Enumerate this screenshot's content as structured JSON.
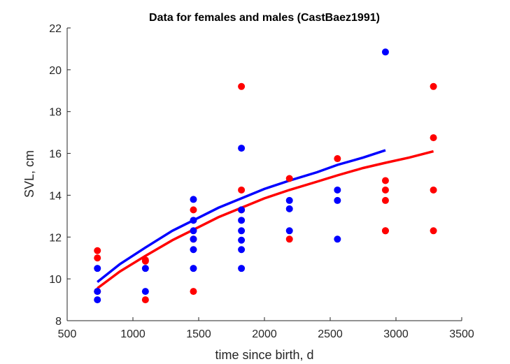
{
  "chart_data": {
    "type": "scatter",
    "title": "Data for females and males (CastBaez1991)",
    "xlabel": "time since birth, d",
    "ylabel": "SVL, cm",
    "xlim": [
      500,
      3500
    ],
    "ylim": [
      8,
      22
    ],
    "xticks": [
      500,
      1000,
      1500,
      2000,
      2500,
      3000,
      3500
    ],
    "yticks": [
      8,
      10,
      12,
      14,
      16,
      18,
      20,
      22
    ],
    "xtick_labels": [
      "500",
      "1000",
      "1500",
      "2000",
      "2500",
      "3000",
      "3500"
    ],
    "ytick_labels": [
      "8",
      "10",
      "12",
      "14",
      "16",
      "18",
      "20",
      "22"
    ],
    "grid": false,
    "legend": "none",
    "series": [
      {
        "color": "#ff0000",
        "kind": "points",
        "x": [
          730,
          730,
          730,
          1095,
          1095,
          1095,
          1460,
          1460,
          1460,
          1825,
          1825,
          1825,
          2190,
          2190,
          2555,
          2920,
          2920,
          2920,
          2920,
          2920,
          3285,
          3285,
          3285,
          3285
        ],
        "y": [
          11.35,
          11.0,
          9.4,
          10.9,
          10.85,
          9.0,
          13.3,
          11.9,
          9.4,
          19.2,
          14.25,
          13.3,
          14.8,
          11.9,
          15.75,
          14.7,
          14.25,
          13.75,
          12.3,
          12.3,
          19.2,
          16.75,
          14.25,
          12.3
        ]
      },
      {
        "color": "#0000ff",
        "kind": "points",
        "x": [
          730,
          730,
          730,
          1095,
          1095,
          1460,
          1460,
          1460,
          1460,
          1460,
          1460,
          1825,
          1825,
          1825,
          1825,
          1825,
          1825,
          1825,
          2190,
          2190,
          2190,
          2555,
          2555,
          2555,
          2920
        ],
        "y": [
          10.5,
          9.4,
          9.0,
          10.5,
          9.4,
          13.8,
          12.8,
          12.3,
          11.9,
          11.4,
          10.5,
          16.25,
          12.8,
          12.3,
          11.85,
          11.4,
          10.5,
          13.3,
          13.75,
          13.35,
          12.3,
          14.25,
          13.75,
          11.9,
          20.85
        ]
      },
      {
        "color": "#ff0000",
        "kind": "curve",
        "x": [
          730,
          900,
          1095,
          1300,
          1460,
          1650,
          1825,
          2000,
          2190,
          2400,
          2555,
          2750,
          2920,
          3100,
          3285
        ],
        "y": [
          9.55,
          10.35,
          11.1,
          11.85,
          12.35,
          12.95,
          13.4,
          13.85,
          14.25,
          14.65,
          14.95,
          15.3,
          15.55,
          15.8,
          16.1
        ]
      },
      {
        "color": "#0000ff",
        "kind": "curve",
        "x": [
          730,
          900,
          1095,
          1300,
          1460,
          1650,
          1825,
          2000,
          2190,
          2400,
          2555,
          2750,
          2920
        ],
        "y": [
          9.85,
          10.7,
          11.5,
          12.3,
          12.8,
          13.4,
          13.85,
          14.3,
          14.7,
          15.1,
          15.45,
          15.8,
          16.15
        ]
      }
    ]
  }
}
